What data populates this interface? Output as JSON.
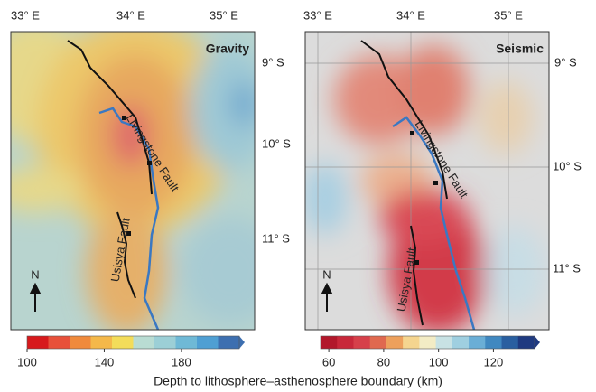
{
  "panels": [
    {
      "title": "Gravity",
      "lon_labels": [
        "33° E",
        "34° E",
        "35° E"
      ],
      "lat_labels": [
        "9° S",
        "10° S",
        "11° S"
      ],
      "faults": [
        "Livingstone Fault",
        "Usisya Fault"
      ],
      "north": "N",
      "colorbar_ticks": [
        100,
        140,
        180
      ]
    },
    {
      "title": "Seismic",
      "lon_labels": [
        "33° E",
        "34° E",
        "35° E"
      ],
      "lat_labels": [
        "9° S",
        "10° S",
        "11° S"
      ],
      "faults": [
        "Livingstone Fault",
        "Usisya Fault"
      ],
      "north": "N",
      "colorbar_ticks": [
        60,
        80,
        100,
        120
      ]
    }
  ],
  "caption": "Depth to lithosphere–asthenosphere boundary (km)"
}
